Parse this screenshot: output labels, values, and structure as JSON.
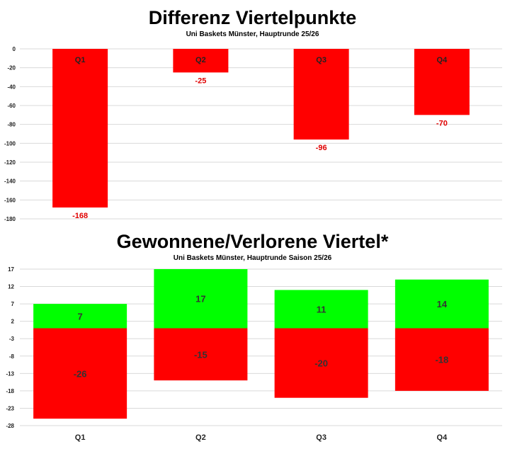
{
  "chart_data": [
    {
      "type": "bar",
      "title": "Differenz Viertelpunkte",
      "subtitle": "Uni Baskets Münster, Hauptrunde 25/26",
      "categories": [
        "Q1",
        "Q2",
        "Q3",
        "Q4"
      ],
      "values": [
        -168,
        -25,
        -96,
        -70
      ],
      "value_labels": [
        "-168",
        "-25",
        "-96",
        "-70"
      ],
      "ylim": [
        -180,
        0
      ],
      "yticks": [
        0,
        -20,
        -40,
        -60,
        -80,
        -100,
        -120,
        -140,
        -160,
        -180
      ],
      "ytick_labels": [
        "0",
        "-20",
        "-40",
        "-60",
        "-80",
        "-100",
        "-120",
        "-140",
        "-160",
        "-180"
      ],
      "grid": true,
      "bar_color": "#ff0000",
      "label_color": "#e00000"
    },
    {
      "type": "bar",
      "stacked": true,
      "title": "Gewonnene/Verlorene Viertel*",
      "subtitle": "Uni Baskets Münster, Hauptrunde Saison 25/26",
      "categories": [
        "Q1",
        "Q2",
        "Q3",
        "Q4"
      ],
      "series": [
        {
          "values": [
            7,
            17,
            11,
            14
          ],
          "labels": [
            "7",
            "17",
            "11",
            "14"
          ],
          "color": "#00ff00"
        },
        {
          "values": [
            -26,
            -15,
            -20,
            -18
          ],
          "labels": [
            "-26",
            "-15",
            "-20",
            "-18"
          ],
          "color": "#ff0000"
        }
      ],
      "ylim": [
        -28,
        17
      ],
      "yticks": [
        17,
        12,
        7,
        2,
        -3,
        -8,
        -13,
        -18,
        -23,
        -28
      ],
      "ytick_labels": [
        "17",
        "12",
        "7",
        "2",
        "-3",
        "-8",
        "-13",
        "-18",
        "-23",
        "-28"
      ],
      "grid": true
    }
  ]
}
